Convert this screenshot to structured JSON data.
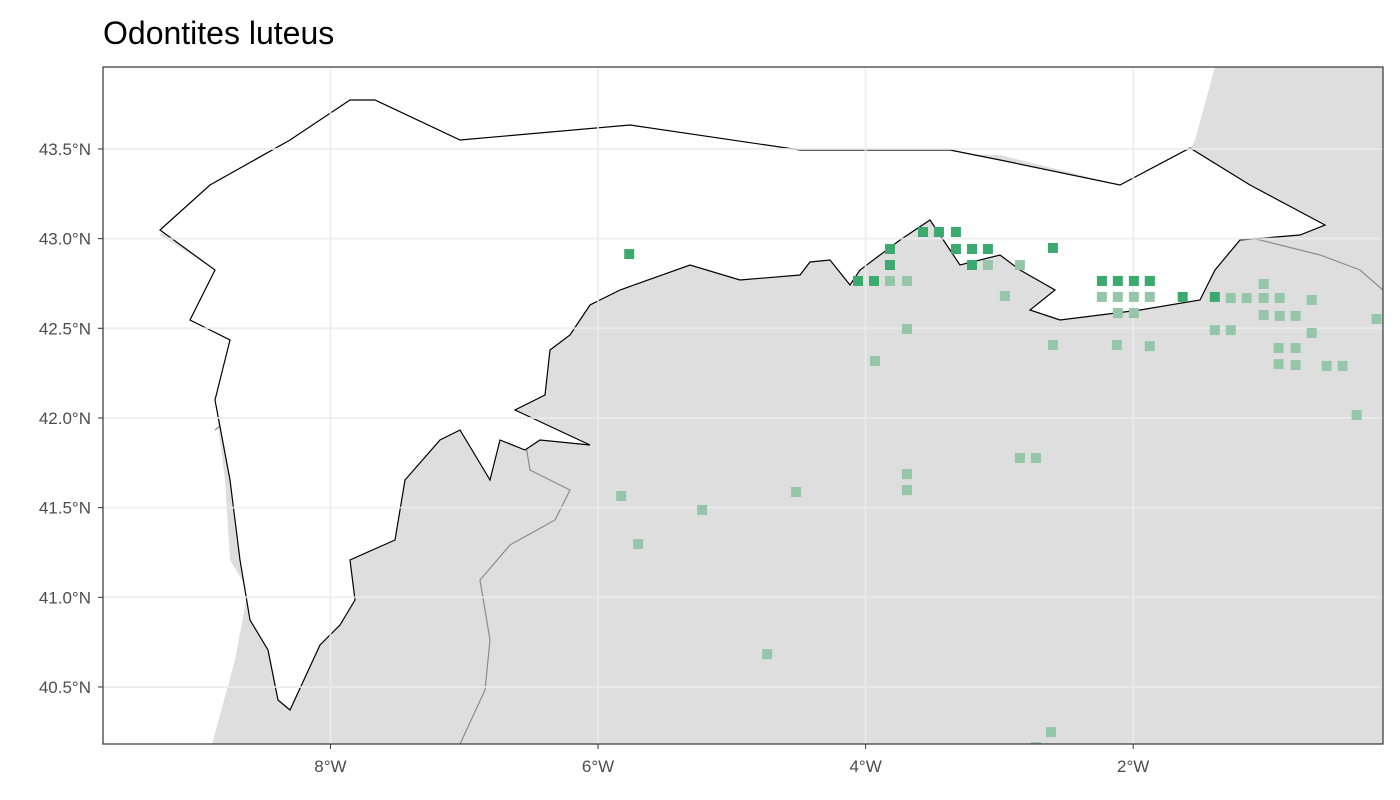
{
  "chart_data": {
    "type": "scatter",
    "title": "Odontites luteus",
    "xlim": [
      -9.7,
      -0.133
    ],
    "ylim": [
      40.182,
      43.957
    ],
    "xticks": [
      {
        "value": -8,
        "label": "8°W"
      },
      {
        "value": -6,
        "label": "6°W"
      },
      {
        "value": -4,
        "label": "4°W"
      },
      {
        "value": -2,
        "label": "2°W"
      }
    ],
    "yticks": [
      {
        "value": 40.5,
        "label": "40.5°N"
      },
      {
        "value": 41.0,
        "label": "41.0°N"
      },
      {
        "value": 41.5,
        "label": "41.5°N"
      },
      {
        "value": 42.0,
        "label": "42.0°N"
      },
      {
        "value": 42.5,
        "label": "42.5°N"
      },
      {
        "value": 43.0,
        "label": "43.0°N"
      },
      {
        "value": 43.5,
        "label": "43.5°N"
      }
    ],
    "grid": true,
    "series": [
      {
        "color": "#95c6a8",
        "x": [
          -3.818,
          -3.691,
          -3.086,
          -2.847,
          -2.959,
          -3.691,
          -3.93,
          -2.6,
          -2.234,
          -2.115,
          -1.995,
          -1.876,
          -1.876,
          -2.115,
          -1.995,
          -2.122,
          -1.876,
          -1.39,
          -1.271,
          -1.271,
          -1.152,
          -1.025,
          -1.025,
          -0.905,
          -1.025,
          -0.905,
          -0.786,
          -0.666,
          -0.666,
          -0.913,
          -0.786,
          -0.913,
          -0.786,
          -0.554,
          -0.435,
          -0.181,
          -0.33,
          -2.847,
          -2.727,
          -3.691,
          -3.691,
          -4.52,
          -5.222,
          -5.827,
          -5.7,
          -4.736,
          -2.615,
          -2.727
        ],
        "y": [
          42.764,
          42.764,
          42.853,
          42.853,
          42.68,
          42.496,
          42.318,
          42.407,
          42.675,
          42.675,
          42.675,
          42.675,
          42.764,
          42.585,
          42.585,
          42.407,
          42.401,
          42.49,
          42.49,
          42.669,
          42.669,
          42.669,
          42.747,
          42.669,
          42.574,
          42.569,
          42.569,
          42.658,
          42.474,
          42.39,
          42.39,
          42.3,
          42.295,
          42.29,
          42.29,
          42.552,
          42.016,
          41.777,
          41.777,
          41.687,
          41.598,
          41.587,
          41.487,
          41.565,
          41.297,
          40.683,
          40.248,
          40.165
        ]
      },
      {
        "color": "#3aaa6f",
        "x": [
          -5.767,
          -4.057,
          -3.937,
          -3.818,
          -3.818,
          -3.571,
          -3.452,
          -3.325,
          -3.325,
          -3.205,
          -3.086,
          -3.205,
          -2.6,
          -2.234,
          -2.115,
          -1.995,
          -1.876,
          -1.63,
          -1.39
        ],
        "y": [
          42.914,
          42.764,
          42.764,
          42.942,
          42.853,
          43.037,
          43.037,
          43.037,
          42.942,
          42.942,
          42.942,
          42.853,
          42.948,
          42.764,
          42.764,
          42.764,
          42.764,
          42.675,
          42.675
        ]
      }
    ]
  }
}
